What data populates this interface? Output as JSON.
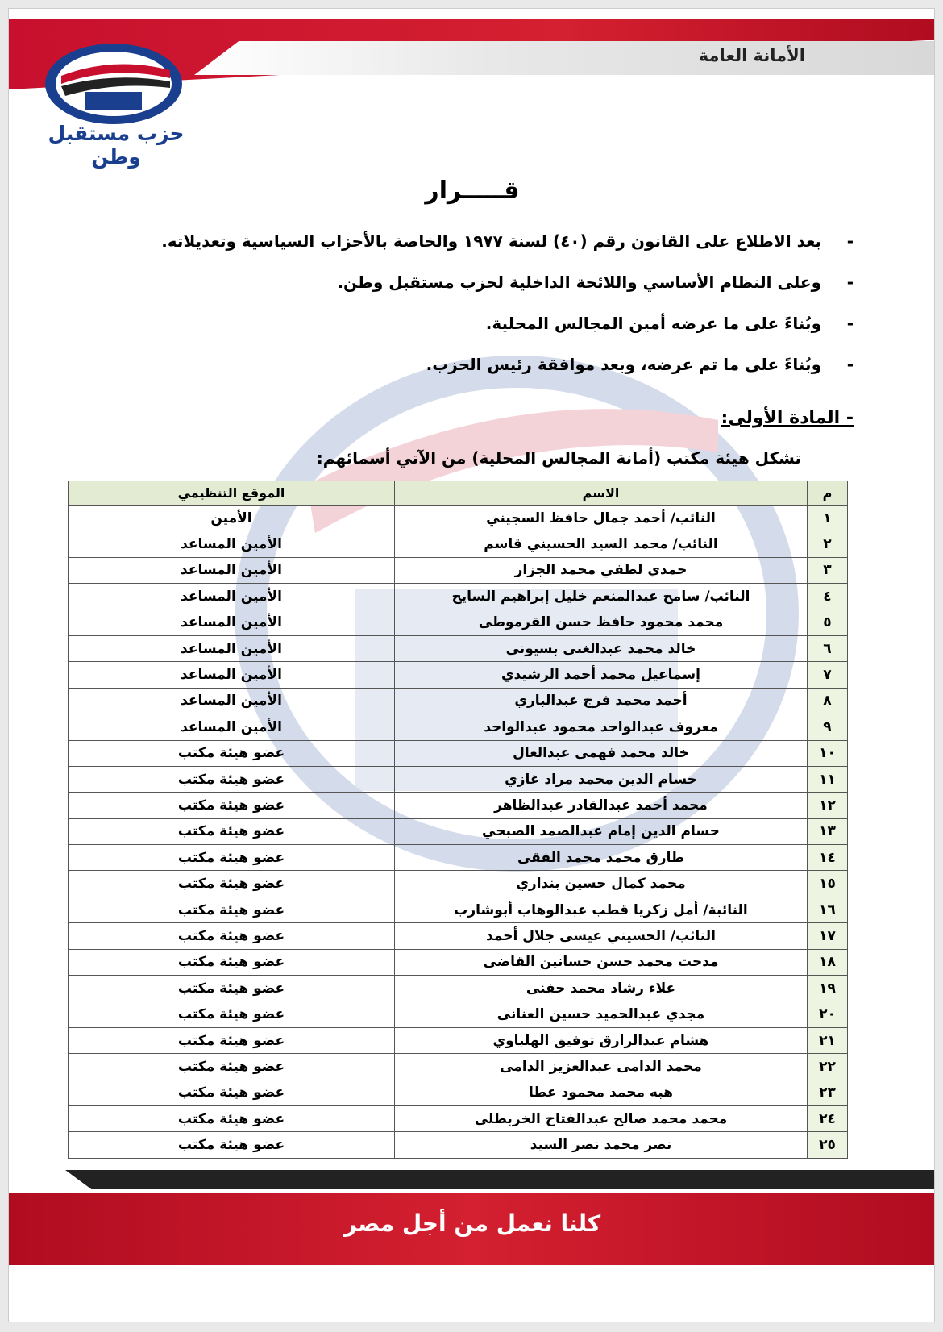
{
  "header": {
    "department": "الأمانة العامة",
    "party_name": "حزب مستقبل وطن"
  },
  "title": "قـــــرار",
  "preamble": [
    "بعد الاطلاع على القانون رقم (٤٠) لسنة ١٩٧٧ والخاصة بالأحزاب السياسية وتعديلاته.",
    "وعلى النظام الأساسي واللائحة الداخلية لحزب مستقبل وطن.",
    "وبُناءً على ما عرضه أمين المجالس المحلية.",
    "وبُناءً على ما تم عرضه، وبعد موافقة رئيس الحزب."
  ],
  "bullet_dash": "-",
  "article_heading": "- المادة الأولى:",
  "article_intro": "تشكل هيئة مكتب (أمانة المجالس المحلية) من الآتي أسمائهم:",
  "table": {
    "headers": [
      "م",
      "الاسم",
      "الموقع التنظيمي"
    ],
    "rows": [
      [
        "١",
        "النائب/ أحمد جمال حافظ السجيني",
        "الأمين"
      ],
      [
        "٢",
        "النائب/ محمد السيد الحسيني قاسم",
        "الأمين المساعد"
      ],
      [
        "٣",
        "حمدي لطفي محمد الجزار",
        "الأمين المساعد"
      ],
      [
        "٤",
        "النائب/ سامح عبدالمنعم خليل إبراهيم السايح",
        "الأمين المساعد"
      ],
      [
        "٥",
        "محمد محمود حافظ حسن القرموطى",
        "الأمين المساعد"
      ],
      [
        "٦",
        "خالد محمد عبدالغنى بسيونى",
        "الأمين المساعد"
      ],
      [
        "٧",
        "إسماعيل محمد أحمد الرشيدي",
        "الأمين المساعد"
      ],
      [
        "٨",
        "أحمد محمد فرج عبدالباري",
        "الأمين المساعد"
      ],
      [
        "٩",
        "معروف عبدالواحد محمود عبدالواحد",
        "الأمين المساعد"
      ],
      [
        "١٠",
        "خالد محمد فهمى عبدالعال",
        "عضو هيئة مكتب"
      ],
      [
        "١١",
        "حسام الدين محمد مراد غازي",
        "عضو هيئة مكتب"
      ],
      [
        "١٢",
        "محمد أحمد عبدالقادر عبدالظاهر",
        "عضو هيئة مكتب"
      ],
      [
        "١٣",
        "حسام الدين إمام عبدالصمد الصبحي",
        "عضو هيئة مكتب"
      ],
      [
        "١٤",
        "طارق محمد محمد الفقى",
        "عضو هيئة مكتب"
      ],
      [
        "١٥",
        "محمد كمال حسين بنداري",
        "عضو هيئة مكتب"
      ],
      [
        "١٦",
        "النائبة/ أمل زكريا قطب عبدالوهاب أبوشارب",
        "عضو هيئة مكتب"
      ],
      [
        "١٧",
        "النائب/ الحسيني عيسى جلال أحمد",
        "عضو هيئة مكتب"
      ],
      [
        "١٨",
        "مدحت محمد حسن حسانين القاضى",
        "عضو هيئة مكتب"
      ],
      [
        "١٩",
        "علاء رشاد محمد حفنى",
        "عضو هيئة مكتب"
      ],
      [
        "٢٠",
        "مجدي عبدالحميد حسين العنانى",
        "عضو هيئة مكتب"
      ],
      [
        "٢١",
        "هشام عبدالرازق توفيق الهلباوي",
        "عضو هيئة مكتب"
      ],
      [
        "٢٢",
        "محمد الدامى عبدالعزيز الدامى",
        "عضو هيئة مكتب"
      ],
      [
        "٢٣",
        "هبه محمد محمود عطا",
        "عضو هيئة مكتب"
      ],
      [
        "٢٤",
        "محمد محمد صالح عبدالفتاح الخربطلى",
        "عضو هيئة مكتب"
      ],
      [
        "٢٥",
        "نصر محمد نصر السيد",
        "عضو هيئة مكتب"
      ]
    ]
  },
  "footer": {
    "slogan": "كلنا نعمل من أجل مصر"
  },
  "colors": {
    "brand_red": "#c8102e",
    "brand_blue": "#1a3f8f",
    "table_header": "#e3ecd3"
  }
}
